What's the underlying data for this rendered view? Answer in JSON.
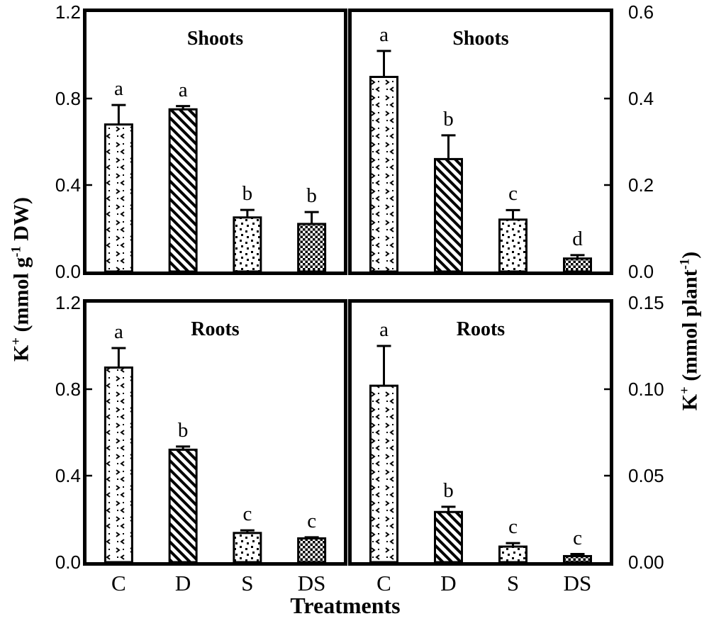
{
  "figure": {
    "background": "#ffffff",
    "ink": "#000000"
  },
  "chart_data": {
    "type": "bar",
    "xlabel": "Treatments",
    "categories": [
      "C",
      "D",
      "S",
      "DS"
    ],
    "left_axis_title_text": "K⁺ (mmol g⁻¹ DW)",
    "right_axis_title_text": "K⁺ (mmol plant⁻¹)",
    "left_axis_title_parts": [
      [
        "K",
        ""
      ],
      [
        "+",
        "sup"
      ],
      [
        " (mmol g",
        ""
      ],
      [
        "-1",
        "sup"
      ],
      [
        " DW)",
        ""
      ]
    ],
    "right_axis_title_parts": [
      [
        "K",
        ""
      ],
      [
        "+",
        "sup"
      ],
      [
        " (mmol plant",
        ""
      ],
      [
        "-1",
        "sup"
      ],
      [
        ")",
        ""
      ]
    ],
    "bar_fill_patterns": {
      "C": "scale-hatch",
      "D": "diagonal-stripes",
      "S": "dots",
      "DS": "checkerboard"
    },
    "legend_position": "none",
    "grid": false,
    "panels": [
      {
        "id": "top-left",
        "title": "Shoots",
        "y_axis_side": "left",
        "ylim": [
          0,
          1.2
        ],
        "yticks": [
          "0.0",
          "0.4",
          "0.8",
          "1.2"
        ],
        "values": [
          0.68,
          0.75,
          0.25,
          0.22
        ],
        "errors": [
          0.09,
          0.015,
          0.035,
          0.055
        ],
        "letters": [
          "a",
          "a",
          "b",
          "b"
        ]
      },
      {
        "id": "top-right",
        "title": "Shoots",
        "y_axis_side": "right",
        "ylim": [
          0,
          0.6
        ],
        "yticks": [
          "0.0",
          "0.2",
          "0.4",
          "0.6"
        ],
        "values": [
          0.45,
          0.26,
          0.12,
          0.03
        ],
        "errors": [
          0.06,
          0.055,
          0.022,
          0.008
        ],
        "letters": [
          "a",
          "b",
          "c",
          "d"
        ]
      },
      {
        "id": "bottom-left",
        "title": "Roots",
        "y_axis_side": "left",
        "ylim": [
          0,
          1.2
        ],
        "yticks": [
          "0.0",
          "0.4",
          "0.8",
          "1.2"
        ],
        "values": [
          0.9,
          0.52,
          0.135,
          0.11
        ],
        "errors": [
          0.09,
          0.015,
          0.012,
          0.005
        ],
        "letters": [
          "a",
          "b",
          "c",
          "c"
        ]
      },
      {
        "id": "bottom-right",
        "title": "Roots",
        "y_axis_side": "right",
        "ylim": [
          0,
          0.15
        ],
        "yticks": [
          "0.00",
          "0.05",
          "0.10",
          "0.15"
        ],
        "values": [
          0.102,
          0.029,
          0.009,
          0.0035
        ],
        "errors": [
          0.023,
          0.003,
          0.002,
          0.0012
        ],
        "letters": [
          "a",
          "b",
          "c",
          "c"
        ]
      }
    ]
  }
}
